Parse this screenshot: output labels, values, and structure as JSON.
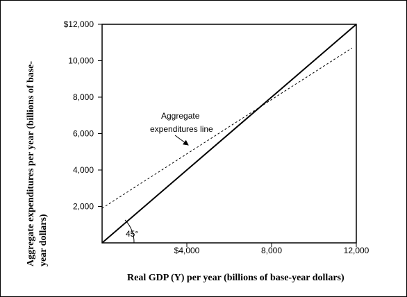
{
  "chart_data": {
    "type": "line",
    "xlabel": "Real GDP (Y) per year (billions of base-year dollars)",
    "ylabel_lines": [
      "Aggregate expenditures per year (billions of base-",
      "year dollars)"
    ],
    "x_ticks": [
      {
        "value": 4000,
        "label": "$4,000"
      },
      {
        "value": 8000,
        "label": "8,000"
      },
      {
        "value": 12000,
        "label": "12,000"
      }
    ],
    "y_ticks": [
      {
        "value": 2000,
        "label": "2,000"
      },
      {
        "value": 4000,
        "label": "4,000"
      },
      {
        "value": 6000,
        "label": "6,000"
      },
      {
        "value": 8000,
        "label": "8,000"
      },
      {
        "value": 10000,
        "label": "10,000"
      },
      {
        "value": 12000,
        "label": "$12,000"
      }
    ],
    "xlim": [
      0,
      12000
    ],
    "ylim": [
      0,
      12000
    ],
    "series": [
      {
        "style": "solid",
        "x": [
          0,
          12000
        ],
        "y": [
          0,
          12000
        ]
      },
      {
        "style": "dashed",
        "x": [
          0,
          11800
        ],
        "y": [
          1900,
          10700
        ]
      }
    ],
    "annotations": {
      "ae_label_lines": [
        "Aggregate",
        "expenditures line"
      ],
      "angle_label": "45°"
    },
    "grid": false
  }
}
